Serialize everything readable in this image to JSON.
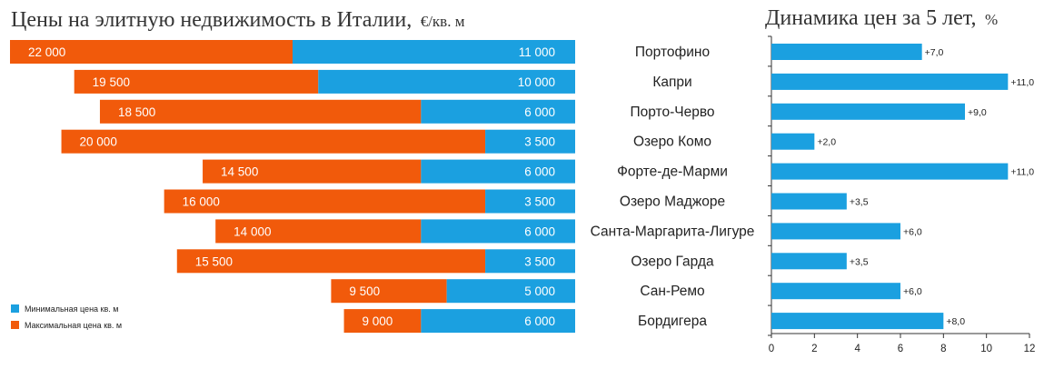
{
  "colors": {
    "min_price": "#1ba0e0",
    "max_price": "#f15a0b",
    "growth": "#1ba0e0",
    "axis": "#333333"
  },
  "left_title": "Цены на элитную недвижимость в Италии,",
  "left_title_unit": "€/кв. м",
  "right_title": "Динамика цен за 5 лет,",
  "right_title_unit": "%",
  "legend": {
    "min": "Минимальная цена кв. м",
    "max": "Максимальная цена кв. м"
  },
  "chart_data": [
    {
      "type": "bar",
      "orientation": "horizontal",
      "title": "Цены на элитную недвижимость в Италии, €/кв. м",
      "categories": [
        "Портофино",
        "Капри",
        "Порто-Черво",
        "Озеро Комо",
        "Форте-де-Марми",
        "Озеро Маджоре",
        "Санта-Маргарита-Лигуре",
        "Озеро Гарда",
        "Сан-Ремо",
        "Бордигера"
      ],
      "series": [
        {
          "name": "Минимальная цена кв. м",
          "values": [
            11000,
            10000,
            6000,
            3500,
            6000,
            3500,
            6000,
            3500,
            5000,
            6000
          ],
          "labels": [
            "11 000",
            "10 000",
            "6 000",
            "3 500",
            "6 000",
            "3 500",
            "6 000",
            "3 500",
            "5 000",
            "6 000"
          ]
        },
        {
          "name": "Максимальная цена кв. м",
          "values": [
            22000,
            19500,
            18500,
            20000,
            14500,
            16000,
            14000,
            15500,
            9500,
            9000
          ],
          "labels": [
            "22 000",
            "19 500",
            "18 500",
            "20 000",
            "14 500",
            "16 000",
            "14 000",
            "15 500",
            "9 500",
            "9 000"
          ]
        }
      ],
      "legend_position": "bottom-left"
    },
    {
      "type": "bar",
      "orientation": "horizontal",
      "title": "Динамика цен за 5 лет, %",
      "categories": [
        "Портофино",
        "Капри",
        "Порто-Черво",
        "Озеро Комо",
        "Форте-де-Марми",
        "Озеро Маджоре",
        "Санта-Маргарита-Лигуре",
        "Озеро Гарда",
        "Сан-Ремо",
        "Бордигера"
      ],
      "values": [
        7.0,
        11.0,
        9.0,
        2.0,
        11.0,
        3.5,
        6.0,
        3.5,
        6.0,
        8.0
      ],
      "labels": [
        "+7,0",
        "+11,0",
        "+9,0",
        "+2,0",
        "+11,0",
        "+3,5",
        "+6,0",
        "+3,5",
        "+6,0",
        "+8,0"
      ],
      "xlim": [
        0,
        12
      ],
      "xticks": [
        "0",
        "2",
        "4",
        "6",
        "8",
        "10",
        "12"
      ],
      "grid": false
    }
  ]
}
